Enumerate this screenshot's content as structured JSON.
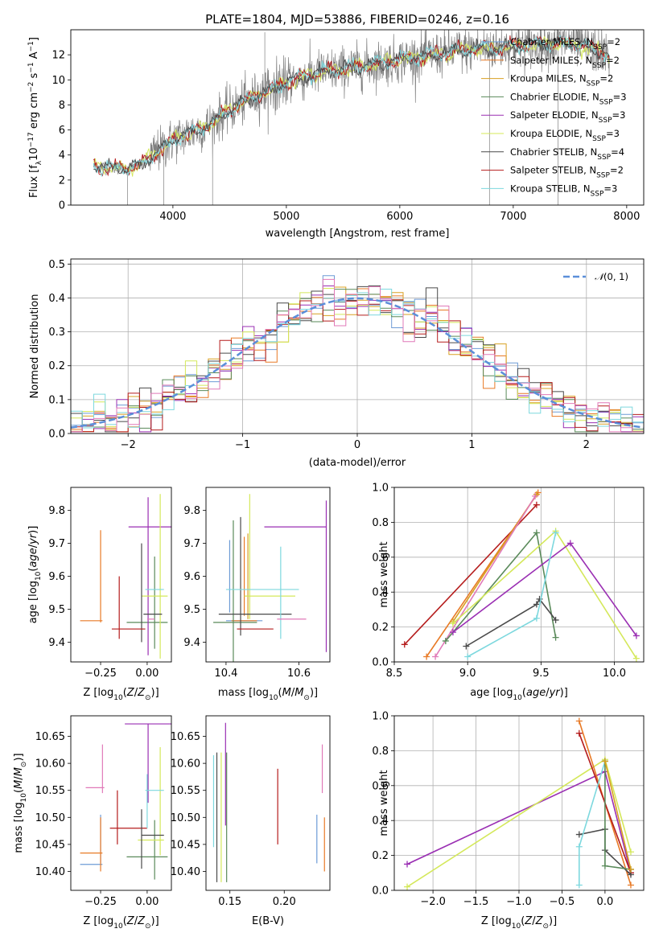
{
  "title": "PLATE=1804, MJD=53886, FIBERID=0246, z=0.16",
  "colors": {
    "Chabrier MILES": "#6d9bd6",
    "Salpeter MILES": "#e87a26",
    "Kroupa MILES": "#d8a022",
    "Chabrier ELODIE": "#5a8a5a",
    "Salpeter ELODIE": "#9a2fb3",
    "Kroupa ELODIE": "#d4e85a",
    "Chabrier STELIB": "#4a4a4a",
    "Salpeter STELIB": "#b51c1c",
    "Kroupa STELIB": "#7dd8de",
    "pink": "#e079b8",
    "data": "#808080",
    "gauss": "#5b8fd9"
  },
  "legend_labels": [
    {
      "name": "Chabrier MILES",
      "prefix": "Chabrier MILES, N",
      "n": "2"
    },
    {
      "name": "Salpeter MILES",
      "prefix": "Salpeter MILES, N",
      "n": "2"
    },
    {
      "name": "Kroupa MILES",
      "prefix": "Kroupa MILES, N",
      "n": "2"
    },
    {
      "name": "Chabrier ELODIE",
      "prefix": "Chabrier ELODIE, N",
      "n": "3"
    },
    {
      "name": "Salpeter ELODIE",
      "prefix": "Salpeter ELODIE, N",
      "n": "3"
    },
    {
      "name": "Kroupa ELODIE",
      "prefix": "Kroupa ELODIE, N",
      "n": "3"
    },
    {
      "name": "Chabrier STELIB",
      "prefix": "Chabrier STELIB, N",
      "n": "4"
    },
    {
      "name": "Salpeter STELIB",
      "prefix": "Salpeter STELIB, N",
      "n": "2"
    },
    {
      "name": "Kroupa STELIB",
      "prefix": "Kroupa STELIB, N",
      "n": "3"
    }
  ],
  "chart_data": [
    {
      "id": "spectrum",
      "type": "line",
      "xlabel": "wavelength [Angstrom, rest frame]",
      "ylabel": "Flux [f",
      "xlim": [
        3100,
        8150
      ],
      "ylim": [
        0,
        14
      ],
      "xticks": [
        4000,
        5000,
        6000,
        7000,
        8000
      ],
      "yticks": [
        0,
        2,
        4,
        6,
        8,
        10,
        12
      ],
      "grid": false,
      "legend": "top-right",
      "x_range": [
        3300,
        7850
      ],
      "continuum_y": [
        [
          3300,
          3.1
        ],
        [
          3600,
          2.9
        ],
        [
          3700,
          3.2
        ],
        [
          3900,
          4.5
        ],
        [
          4000,
          5.2
        ],
        [
          4300,
          6.3
        ],
        [
          4500,
          7.6
        ],
        [
          4700,
          8.6
        ],
        [
          5000,
          9.8
        ],
        [
          5300,
          10.6
        ],
        [
          5600,
          11.0
        ],
        [
          6000,
          11.6
        ],
        [
          6500,
          12.3
        ],
        [
          7000,
          12.7
        ],
        [
          7500,
          13.0
        ],
        [
          7850,
          12.0
        ]
      ],
      "spikes": [
        [
          3600,
          0
        ],
        [
          3920,
          0
        ],
        [
          4350,
          0
        ],
        [
          4810,
          13.8
        ],
        [
          6790,
          0
        ],
        [
          6800,
          13.8
        ],
        [
          7395,
          0
        ],
        [
          7410,
          13.8
        ]
      ]
    },
    {
      "id": "residuals",
      "type": "bar",
      "xlabel": "(data-model)/error",
      "ylabel": "Normed distribution",
      "xlim": [
        -2.5,
        2.5
      ],
      "ylim": [
        0,
        0.515
      ],
      "xticks": [
        -2,
        -1,
        0,
        1,
        2
      ],
      "yticks": [
        0.0,
        0.1,
        0.2,
        0.3,
        0.4,
        0.5
      ],
      "grid": true,
      "legend": "top-right",
      "gauss_label": "𝒩(0, 1)",
      "bin_edges_from": -2.5,
      "bin_width": 0.1
    },
    {
      "id": "Z-age",
      "type": "scatter",
      "xlabel": "Z [log",
      "ylabel": "age  [log",
      "xlim": [
        -0.41,
        0.13
      ],
      "ylim": [
        9.34,
        9.87
      ],
      "xticks": [
        -0.25,
        0.0
      ],
      "yticks": [
        9.4,
        9.5,
        9.6,
        9.7,
        9.8
      ],
      "points": [
        {
          "c": "Chabrier MILES",
          "x": -0.26,
          "xe": 0.0,
          "y": 9.465,
          "ye": 0.0
        },
        {
          "c": "Salpeter MILES",
          "x": -0.3,
          "xe": 0.06,
          "y": 9.465,
          "ye": 0.0
        },
        {
          "c": "Salpeter MILES",
          "x": -0.25,
          "xe": 0.0,
          "y": 9.6,
          "ye": 0.14
        },
        {
          "c": "Kroupa MILES",
          "x": -0.26,
          "xe": 0.0,
          "y": 9.465,
          "ye": 0.0
        },
        {
          "c": "Chabrier ELODIE",
          "x": 0.0,
          "xe": 0.11,
          "y": 9.46,
          "ye": 0.0
        },
        {
          "c": "Chabrier ELODIE",
          "x": 0.04,
          "xe": 0.0,
          "y": 9.52,
          "ye": 0.14
        },
        {
          "c": "Salpeter ELODIE",
          "x": 0.05,
          "xe": 0.15,
          "y": 9.75,
          "ye": 0.0
        },
        {
          "c": "Salpeter ELODIE",
          "x": 0.005,
          "xe": 0.0,
          "y": 9.6,
          "ye": 0.24
        },
        {
          "c": "Kroupa ELODIE",
          "x": 0.04,
          "xe": 0.07,
          "y": 9.54,
          "ye": 0.0
        },
        {
          "c": "Kroupa ELODIE",
          "x": 0.07,
          "xe": 0.0,
          "y": 9.6,
          "ye": 0.25
        },
        {
          "c": "Chabrier STELIB",
          "x": 0.03,
          "xe": 0.05,
          "y": 9.485,
          "ye": 0.0
        },
        {
          "c": "Chabrier STELIB",
          "x": -0.03,
          "xe": 0.0,
          "y": 9.55,
          "ye": 0.15
        },
        {
          "c": "Salpeter STELIB",
          "x": -0.1,
          "xe": 0.09,
          "y": 9.44,
          "ye": 0.0
        },
        {
          "c": "Salpeter STELIB",
          "x": -0.15,
          "xe": 0.0,
          "y": 9.505,
          "ye": 0.095
        },
        {
          "c": "Kroupa STELIB",
          "x": 0.04,
          "xe": 0.05,
          "y": 9.56,
          "ye": 0.0
        },
        {
          "c": "pink",
          "x": 0.02,
          "xe": 0.02,
          "y": 9.47,
          "ye": 0.0
        }
      ]
    },
    {
      "id": "mass-age",
      "type": "scatter",
      "xlabel": "mass [log",
      "ylabel": "",
      "xlim": [
        10.345,
        10.685
      ],
      "ylim": [
        9.34,
        9.87
      ],
      "xticks": [
        10.4,
        10.6
      ],
      "yticks": [
        9.4,
        9.5,
        9.6,
        9.7,
        9.8
      ],
      "points": [
        {
          "c": "Chabrier MILES",
          "x": 10.41,
          "xe": 0.0,
          "y": 9.6,
          "ye": 0.11
        },
        {
          "c": "Chabrier MILES",
          "x": 10.45,
          "xe": 0.05,
          "y": 9.465,
          "ye": 0.0
        },
        {
          "c": "Salpeter MILES",
          "x": 10.45,
          "xe": 0.0,
          "y": 9.6,
          "ye": 0.12
        },
        {
          "c": "Salpeter MILES",
          "x": 10.45,
          "xe": 0.035,
          "y": 9.465,
          "ye": 0.0
        },
        {
          "c": "Kroupa MILES",
          "x": 10.46,
          "xe": 0.0,
          "y": 9.6,
          "ye": 0.13
        },
        {
          "c": "Chabrier ELODIE",
          "x": 10.42,
          "xe": 0.0,
          "y": 9.55,
          "ye": 0.22
        },
        {
          "c": "Chabrier ELODIE",
          "x": 10.425,
          "xe": 0.06,
          "y": 9.46,
          "ye": 0.0
        },
        {
          "c": "Salpeter ELODIE",
          "x": 10.675,
          "xe": 0.0,
          "y": 9.6,
          "ye": 0.23
        },
        {
          "c": "Salpeter ELODIE",
          "x": 10.59,
          "xe": 0.085,
          "y": 9.75,
          "ye": 0.0
        },
        {
          "c": "Kroupa ELODIE",
          "x": 10.465,
          "xe": 0.0,
          "y": 9.66,
          "ye": 0.19
        },
        {
          "c": "Kroupa ELODIE",
          "x": 10.52,
          "xe": 0.07,
          "y": 9.54,
          "ye": 0.0
        },
        {
          "c": "Chabrier STELIB",
          "x": 10.44,
          "xe": 0.0,
          "y": 9.6,
          "ye": 0.18
        },
        {
          "c": "Chabrier STELIB",
          "x": 10.48,
          "xe": 0.1,
          "y": 9.485,
          "ye": 0.0
        },
        {
          "c": "Salpeter STELIB",
          "x": 10.48,
          "xe": 0.05,
          "y": 9.44,
          "ye": 0.0
        },
        {
          "c": "Kroupa STELIB",
          "x": 10.55,
          "xe": 0.0,
          "y": 9.55,
          "ye": 0.14
        },
        {
          "c": "Kroupa STELIB",
          "x": 10.5,
          "xe": 0.1,
          "y": 9.56,
          "ye": 0.0
        },
        {
          "c": "pink",
          "x": 10.58,
          "xe": 0.04,
          "y": 9.47,
          "ye": 0.0
        }
      ]
    },
    {
      "id": "age-weight",
      "type": "line",
      "xlabel": "age  [log",
      "ylabel": "mass weight",
      "xlim": [
        8.5,
        10.2
      ],
      "ylim": [
        0,
        1
      ],
      "xticks": [
        8.5,
        9.0,
        9.5,
        10.0
      ],
      "yticks": [
        0.0,
        0.2,
        0.4,
        0.6,
        0.8,
        1.0
      ],
      "grid": true,
      "series": [
        {
          "c": "Salpeter STELIB",
          "points": [
            [
              8.57,
              0.1
            ],
            [
              9.47,
              0.9
            ]
          ]
        },
        {
          "c": "Salpeter MILES",
          "points": [
            [
              8.72,
              0.03
            ],
            [
              9.48,
              0.97
            ]
          ]
        },
        {
          "c": "Kroupa MILES",
          "points": [
            [
              8.9,
              0.23
            ],
            [
              9.47,
              0.96
            ]
          ]
        },
        {
          "c": "pink",
          "points": [
            [
              8.78,
              0.03
            ],
            [
              9.46,
              0.95
            ]
          ]
        },
        {
          "c": "Chabrier ELODIE",
          "points": [
            [
              8.85,
              0.12
            ],
            [
              9.47,
              0.74
            ],
            [
              9.6,
              0.14
            ]
          ]
        },
        {
          "c": "Kroupa ELODIE",
          "points": [
            [
              8.9,
              0.22
            ],
            [
              9.6,
              0.75
            ],
            [
              10.15,
              0.02
            ]
          ]
        },
        {
          "c": "Salpeter ELODIE",
          "points": [
            [
              8.9,
              0.17
            ],
            [
              9.7,
              0.68
            ],
            [
              10.15,
              0.15
            ]
          ]
        },
        {
          "c": "Chabrier STELIB",
          "points": [
            [
              8.99,
              0.09
            ],
            [
              9.47,
              0.33
            ],
            [
              9.49,
              0.36
            ],
            [
              9.6,
              0.24
            ]
          ]
        },
        {
          "c": "Kroupa STELIB",
          "points": [
            [
              9.0,
              0.03
            ],
            [
              9.47,
              0.25
            ],
            [
              9.6,
              0.74
            ]
          ]
        }
      ]
    },
    {
      "id": "Z-mass",
      "type": "scatter",
      "xlabel": "Z [log",
      "ylabel": "mass [log",
      "xlim": [
        -0.41,
        0.13
      ],
      "ylim": [
        10.365,
        10.688
      ],
      "xticks": [
        -0.25,
        0.0
      ],
      "yticks": [
        10.4,
        10.45,
        10.5,
        10.55,
        10.6,
        10.65
      ],
      "points": [
        {
          "c": "Chabrier MILES",
          "x": -0.3,
          "xe": 0.06,
          "y": 10.413,
          "ye": 0.0
        },
        {
          "c": "Chabrier MILES",
          "x": -0.25,
          "xe": 0.0,
          "y": 10.46,
          "ye": 0.045
        },
        {
          "c": "Salpeter MILES",
          "x": -0.3,
          "xe": 0.06,
          "y": 10.434,
          "ye": 0.0
        },
        {
          "c": "Salpeter MILES",
          "x": -0.25,
          "xe": 0.0,
          "y": 10.45,
          "ye": 0.05
        },
        {
          "c": "pink",
          "x": -0.28,
          "xe": 0.05,
          "y": 10.555,
          "ye": 0.0
        },
        {
          "c": "pink",
          "x": -0.24,
          "xe": 0.0,
          "y": 10.59,
          "ye": 0.045
        },
        {
          "c": "Salpeter STELIB",
          "x": -0.1,
          "xe": 0.1,
          "y": 10.48,
          "ye": 0.0
        },
        {
          "c": "Salpeter STELIB",
          "x": -0.16,
          "xe": 0.0,
          "y": 10.5,
          "ye": 0.05
        },
        {
          "c": "Chabrier ELODIE",
          "x": 0.0,
          "xe": 0.11,
          "y": 10.427,
          "ye": 0.0
        },
        {
          "c": "Chabrier ELODIE",
          "x": 0.04,
          "xe": 0.0,
          "y": 10.44,
          "ye": 0.055
        },
        {
          "c": "Salpeter ELODIE",
          "x": 0.03,
          "xe": 0.15,
          "y": 10.673,
          "ye": 0.0
        },
        {
          "c": "Salpeter ELODIE",
          "x": 0.005,
          "xe": 0.0,
          "y": 10.6,
          "ye": 0.073
        },
        {
          "c": "Kroupa ELODIE",
          "x": 0.07,
          "xe": 0.0,
          "y": 10.53,
          "ye": 0.1
        },
        {
          "c": "Kroupa ELODIE",
          "x": 0.02,
          "xe": 0.07,
          "y": 10.458,
          "ye": 0.0
        },
        {
          "c": "Chabrier STELIB",
          "x": 0.03,
          "xe": 0.06,
          "y": 10.467,
          "ye": 0.0
        },
        {
          "c": "Chabrier STELIB",
          "x": -0.03,
          "xe": 0.0,
          "y": 10.46,
          "ye": 0.055
        },
        {
          "c": "Kroupa STELIB",
          "x": 0.04,
          "xe": 0.05,
          "y": 10.55,
          "ye": 0.0
        },
        {
          "c": "Kroupa STELIB",
          "x": 0.0,
          "xe": 0.0,
          "y": 10.53,
          "ye": 0.05
        }
      ]
    },
    {
      "id": "ebv-mass",
      "type": "scatter",
      "xlabel": "E(B-V)",
      "ylabel": "",
      "xlim": [
        0.128,
        0.242
      ],
      "ylim": [
        10.365,
        10.688
      ],
      "xticks": [
        0.15,
        0.2
      ],
      "yticks": [
        10.4,
        10.45,
        10.5,
        10.55,
        10.6,
        10.65
      ],
      "points": [
        {
          "c": "Kroupa STELIB",
          "x": 0.135,
          "xe": 0.0,
          "y": 10.53,
          "ye": 0.085
        },
        {
          "c": "Chabrier STELIB",
          "x": 0.138,
          "xe": 0.0,
          "y": 10.5,
          "ye": 0.12
        },
        {
          "c": "Kroupa ELODIE",
          "x": 0.142,
          "xe": 0.0,
          "y": 10.5,
          "ye": 0.12
        },
        {
          "c": "Salpeter ELODIE",
          "x": 0.146,
          "xe": 0.0,
          "y": 10.58,
          "ye": 0.095
        },
        {
          "c": "Chabrier ELODIE",
          "x": 0.147,
          "xe": 0.0,
          "y": 10.5,
          "ye": 0.12
        },
        {
          "c": "Salpeter STELIB",
          "x": 0.194,
          "xe": 0.0,
          "y": 10.52,
          "ye": 0.07
        },
        {
          "c": "Chabrier MILES",
          "x": 0.23,
          "xe": 0.0,
          "y": 10.46,
          "ye": 0.045
        },
        {
          "c": "pink",
          "x": 0.235,
          "xe": 0.0,
          "y": 10.59,
          "ye": 0.045
        },
        {
          "c": "Salpeter MILES",
          "x": 0.237,
          "xe": 0.0,
          "y": 10.45,
          "ye": 0.05
        }
      ]
    },
    {
      "id": "Z-weight",
      "type": "line",
      "xlabel": "Z [log",
      "ylabel": "mass weight",
      "xlim": [
        -2.45,
        0.45
      ],
      "ylim": [
        0,
        1
      ],
      "xticks": [
        -2.0,
        -1.5,
        -1.0,
        -0.5,
        0.0
      ],
      "yticks": [
        0.0,
        0.2,
        0.4,
        0.6,
        0.8,
        1.0
      ],
      "grid": true,
      "series": [
        {
          "c": "Salpeter ELODIE",
          "points": [
            [
              -2.3,
              0.15
            ],
            [
              0.0,
              0.68
            ],
            [
              0.3,
              0.1
            ]
          ]
        },
        {
          "c": "Kroupa ELODIE",
          "points": [
            [
              -2.3,
              0.02
            ],
            [
              0.0,
              0.75
            ],
            [
              0.3,
              0.22
            ]
          ]
        },
        {
          "c": "Salpeter MILES",
          "points": [
            [
              -0.3,
              0.97
            ],
            [
              0.3,
              0.03
            ]
          ]
        },
        {
          "c": "Salpeter STELIB",
          "points": [
            [
              -0.3,
              0.9
            ],
            [
              0.3,
              0.1
            ]
          ]
        },
        {
          "c": "Chabrier STELIB",
          "points": [
            [
              -0.3,
              0.32
            ],
            [
              0.0,
              0.35
            ],
            [
              0.0,
              0.23
            ],
            [
              0.3,
              0.09
            ]
          ]
        },
        {
          "c": "Kroupa STELIB",
          "points": [
            [
              -0.3,
              0.03
            ],
            [
              -0.3,
              0.25
            ],
            [
              0.0,
              0.74
            ]
          ]
        },
        {
          "c": "Chabrier ELODIE",
          "points": [
            [
              0.0,
              0.74
            ],
            [
              0.0,
              0.14
            ],
            [
              0.3,
              0.12
            ]
          ]
        },
        {
          "c": "Kroupa MILES",
          "points": [
            [
              0.0,
              0.74
            ],
            [
              0.3,
              0.12
            ]
          ]
        }
      ]
    }
  ]
}
